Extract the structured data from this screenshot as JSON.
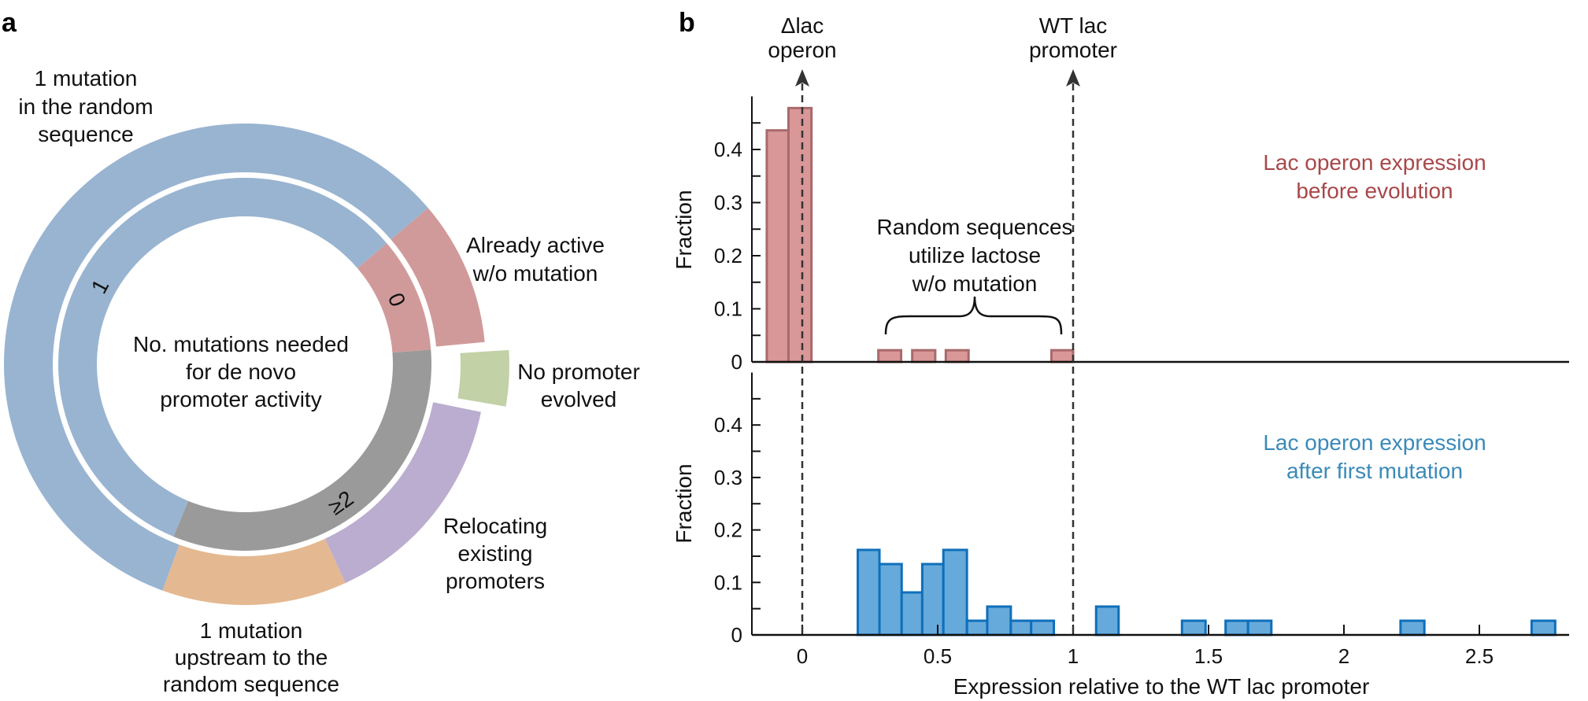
{
  "panels": {
    "a": "a",
    "b": "b"
  },
  "colors": {
    "ring_blue": "#99b4d1",
    "ring_red": "#d19a9a",
    "ring_green": "#c2d1a6",
    "ring_purple": "#bbadcf",
    "ring_orange": "#e4b991",
    "ring_gray": "#9a9a9a",
    "before_fill": "#d99797",
    "before_stroke": "#a86a6c",
    "after_fill": "#66aadb",
    "after_stroke": "#0f6fba",
    "before_text": "#a8484a",
    "after_text": "#3a8ab8"
  },
  "chart_data": [
    {
      "type": "pie",
      "subtype": "nested-donut",
      "center_text": [
        "No. mutations needed",
        "for de novo",
        "promoter activity"
      ],
      "inner_ring": [
        {
          "label": "0",
          "value": 0.1,
          "color": "#d19a9a"
        },
        {
          "label": "≥2",
          "value": 0.325,
          "color": "#9a9a9a"
        },
        {
          "label": "1",
          "value": 0.575,
          "color": "#99b4d1"
        }
      ],
      "outer_ring": [
        {
          "label": [
            "Already active",
            "w/o mutation"
          ],
          "value": 0.1,
          "color": "#d19a9a"
        },
        {
          "label": [
            "No promoter",
            "evolved"
          ],
          "value": 0.042,
          "color": "#c2d1a6",
          "exploded": true
        },
        {
          "label": [
            "Relocating",
            "existing",
            "promoters"
          ],
          "value": 0.152,
          "color": "#bbadcf"
        },
        {
          "label": [
            "1 mutation",
            "upstream to the",
            "random sequence"
          ],
          "value": 0.124,
          "color": "#e4b991"
        },
        {
          "label": [
            "1 mutation",
            "in the random",
            "sequence"
          ],
          "value": 0.582,
          "color": "#99b4d1"
        }
      ]
    },
    {
      "type": "bar",
      "subtype": "histogram",
      "xlabel": "Expression relative to the WT lac promoter",
      "xlim": [
        -0.2,
        2.83
      ],
      "xticks": [
        0,
        0.5,
        1,
        1.5,
        2,
        2.5
      ],
      "xtick_labels": [
        "0",
        "0.5",
        "1",
        "1.5",
        "2",
        "2.5"
      ],
      "reference_lines": [
        {
          "x": 0,
          "label": [
            "Δlac",
            "operon"
          ]
        },
        {
          "x": 1,
          "label": [
            "WT lac",
            "promoter"
          ]
        }
      ],
      "panels": [
        {
          "ylabel": "Fraction",
          "ylim": [
            0,
            0.5
          ],
          "yticks": [
            0,
            0.1,
            0.2,
            0.3,
            0.4
          ],
          "ytick_labels": [
            "0",
            "0.1",
            "0.2",
            "0.3",
            "0.4"
          ],
          "legend_text": [
            "Lac operon expression",
            "before evolution"
          ],
          "annotation": [
            "Random sequences",
            "utilize lactose",
            "w/o mutation"
          ],
          "bins": [
            [
              -0.131,
              -0.051,
              0.436
            ],
            [
              -0.051,
              0.034,
              0.478
            ],
            [
              0.281,
              0.365,
              0.022
            ],
            [
              0.406,
              0.491,
              0.022
            ],
            [
              0.53,
              0.614,
              0.022
            ],
            [
              0.92,
              1.0,
              0.022
            ]
          ]
        },
        {
          "ylabel": "Fraction",
          "ylim": [
            0,
            0.5
          ],
          "yticks": [
            0,
            0.1,
            0.2,
            0.3,
            0.4
          ],
          "ytick_labels": [
            "0",
            "0.1",
            "0.2",
            "0.3",
            "0.4"
          ],
          "legend_text": [
            "Lac operon expression",
            "after first mutation"
          ],
          "bins": [
            [
              0.205,
              0.285,
              0.162
            ],
            [
              0.285,
              0.367,
              0.135
            ],
            [
              0.367,
              0.443,
              0.081
            ],
            [
              0.443,
              0.521,
              0.135
            ],
            [
              0.521,
              0.608,
              0.162
            ],
            [
              0.608,
              0.683,
              0.027
            ],
            [
              0.683,
              0.77,
              0.054
            ],
            [
              0.77,
              0.845,
              0.027
            ],
            [
              0.845,
              0.929,
              0.027
            ],
            [
              1.085,
              1.168,
              0.054
            ],
            [
              1.402,
              1.489,
              0.027
            ],
            [
              1.563,
              1.646,
              0.027
            ],
            [
              1.646,
              1.732,
              0.027
            ],
            [
              2.209,
              2.297,
              0.027
            ],
            [
              2.693,
              2.78,
              0.027
            ]
          ]
        }
      ]
    }
  ]
}
